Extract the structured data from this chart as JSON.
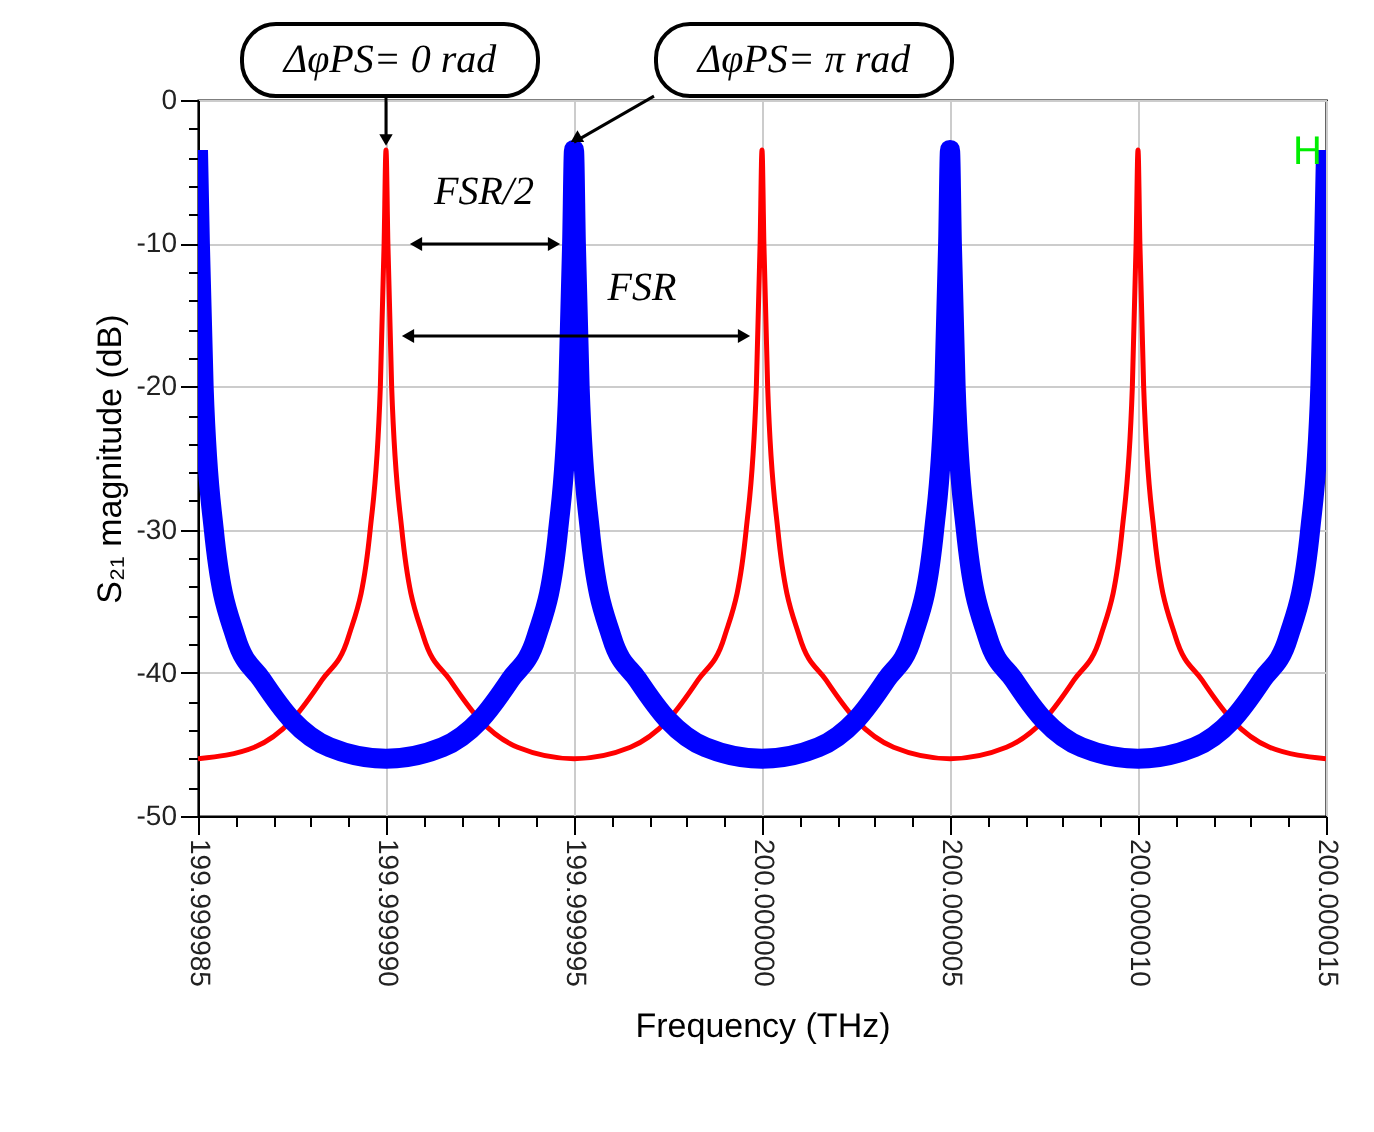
{
  "chart_data": {
    "type": "line",
    "xlabel": "Frequency (THz)",
    "ylabel": "S₂₁ magnitude (dB)",
    "xlim": [
      199.999985,
      200.000015
    ],
    "ylim": [
      -50,
      0
    ],
    "xticks": [
      {
        "value": 199.999985,
        "label": "199.999985"
      },
      {
        "value": 199.999986,
        "label": null
      },
      {
        "value": 199.999987,
        "label": null
      },
      {
        "value": 199.999988,
        "label": null
      },
      {
        "value": 199.999989,
        "label": null
      },
      {
        "value": 199.99999,
        "label": "199.999990"
      },
      {
        "value": 199.999991,
        "label": null
      },
      {
        "value": 199.999992,
        "label": null
      },
      {
        "value": 199.999993,
        "label": null
      },
      {
        "value": 199.999994,
        "label": null
      },
      {
        "value": 199.999995,
        "label": "199.999995"
      },
      {
        "value": 199.999996,
        "label": null
      },
      {
        "value": 199.999997,
        "label": null
      },
      {
        "value": 199.999998,
        "label": null
      },
      {
        "value": 199.999999,
        "label": null
      },
      {
        "value": 200.0,
        "label": "200.000000"
      },
      {
        "value": 200.000001,
        "label": null
      },
      {
        "value": 200.000002,
        "label": null
      },
      {
        "value": 200.000003,
        "label": null
      },
      {
        "value": 200.000004,
        "label": null
      },
      {
        "value": 200.000005,
        "label": "200.000005"
      },
      {
        "value": 200.000006,
        "label": null
      },
      {
        "value": 200.000007,
        "label": null
      },
      {
        "value": 200.000008,
        "label": null
      },
      {
        "value": 200.000009,
        "label": null
      },
      {
        "value": 200.00001,
        "label": "200.000010"
      },
      {
        "value": 200.000011,
        "label": null
      },
      {
        "value": 200.000012,
        "label": null
      },
      {
        "value": 200.000013,
        "label": null
      },
      {
        "value": 200.000014,
        "label": null
      },
      {
        "value": 200.000015,
        "label": "200.000015"
      }
    ],
    "yticks": [
      -50,
      {
        "value": -48,
        "label": null
      },
      {
        "value": -46,
        "label": null
      },
      {
        "value": -44,
        "label": null
      },
      {
        "value": -42,
        "label": null
      },
      -40,
      {
        "value": -38,
        "label": null
      },
      {
        "value": -36,
        "label": null
      },
      {
        "value": -34,
        "label": null
      },
      {
        "value": -32,
        "label": null
      },
      -30,
      {
        "value": -28,
        "label": null
      },
      {
        "value": -26,
        "label": null
      },
      {
        "value": -24,
        "label": null
      },
      {
        "value": -22,
        "label": null
      },
      -20,
      {
        "value": -18,
        "label": null
      },
      {
        "value": -16,
        "label": null
      },
      {
        "value": -14,
        "label": null
      },
      {
        "value": -12,
        "label": null
      },
      -10,
      {
        "value": -8,
        "label": null
      },
      {
        "value": -6,
        "label": null
      },
      {
        "value": -4,
        "label": null
      },
      {
        "value": -2,
        "label": null
      },
      0
    ],
    "grid": true,
    "series": [
      {
        "color": "#ff0000",
        "x": [
          199.999985,
          199.9999865,
          199.9999875,
          199.9999883,
          199.999989,
          199.99998958,
          199.99998985,
          199.99998995,
          199.99999,
          199.99999005,
          199.99999015,
          199.99999042,
          199.999991,
          199.9999917,
          199.9999925,
          199.9999935,
          199.999995,
          199.9999965,
          199.9999975,
          199.9999983,
          199.999999,
          199.99999958,
          199.99999985,
          199.99999995,
          200.0,
          200.00000005,
          200.00000015,
          200.00000042,
          200.000001,
          200.0000017,
          200.0000025,
          200.0000035,
          200.000005,
          200.0000065,
          200.0000075,
          200.0000083,
          200.000009,
          200.00000958,
          200.00000985,
          200.00000995,
          200.00001,
          200.00001005,
          200.00001015,
          200.00001042,
          200.000011,
          200.0000117,
          200.0000125,
          200.0000135,
          200.000015
        ],
        "values": [
          -46,
          -45.2,
          -43.3,
          -40.5,
          -37.5,
          -30,
          -20,
          -10,
          -3.5,
          -10,
          -20,
          -30,
          -37.5,
          -40.5,
          -43.3,
          -45.2,
          -46,
          -45.2,
          -43.3,
          -40.5,
          -37.5,
          -30,
          -20,
          -10,
          -3.5,
          -10,
          -20,
          -30,
          -37.5,
          -40.5,
          -43.3,
          -45.2,
          -46,
          -45.2,
          -43.3,
          -40.5,
          -37.5,
          -30,
          -20,
          -10,
          -3.5,
          -10,
          -20,
          -30,
          -37.5,
          -40.5,
          -43.3,
          -45.2,
          -46
        ]
      },
      {
        "color": "#0000ff",
        "x": [
          199.999985,
          199.99998505,
          199.99998515,
          199.99998542,
          199.999986,
          199.9999867,
          199.9999875,
          199.9999885,
          199.99999,
          199.9999915,
          199.9999925,
          199.9999933,
          199.999994,
          199.99999458,
          199.99999485,
          199.99999495,
          199.999995,
          199.99999505,
          199.99999515,
          199.99999542,
          199.999996,
          199.9999967,
          199.9999975,
          199.9999985,
          200.0,
          200.0000015,
          200.0000025,
          200.0000033,
          200.000004,
          200.00000458,
          200.00000485,
          200.00000495,
          200.000005,
          200.00000505,
          200.00000515,
          200.00000542,
          200.000006,
          200.0000067,
          200.0000075,
          200.0000085,
          200.00001,
          200.0000115,
          200.0000125,
          200.0000133,
          200.000014,
          200.00001458,
          200.00001485,
          200.00001495,
          200.000015
        ],
        "values": [
          -3.5,
          -10,
          -20,
          -30,
          -37.5,
          -40.5,
          -43.3,
          -45.2,
          -46,
          -45.2,
          -43.3,
          -40.5,
          -37.5,
          -30,
          -20,
          -10,
          -3.5,
          -10,
          -20,
          -30,
          -37.5,
          -40.5,
          -43.3,
          -45.2,
          -46,
          -45.2,
          -43.3,
          -40.5,
          -37.5,
          -30,
          -20,
          -10,
          -3.5,
          -10,
          -20,
          -30,
          -37.5,
          -40.5,
          -43.3,
          -45.2,
          -46,
          -45.2,
          -43.3,
          -40.5,
          -37.5,
          -30,
          -20,
          -10,
          -3.5
        ]
      }
    ],
    "annotations": [
      {
        "text": "ΔφPS= 0 rad",
        "x": 199.99999,
        "y": -3.5
      },
      {
        "text": "ΔφPS= π rad",
        "x": 199.999995,
        "y": -3.5
      },
      "FSR/2",
      "FSR",
      "H"
    ]
  }
}
